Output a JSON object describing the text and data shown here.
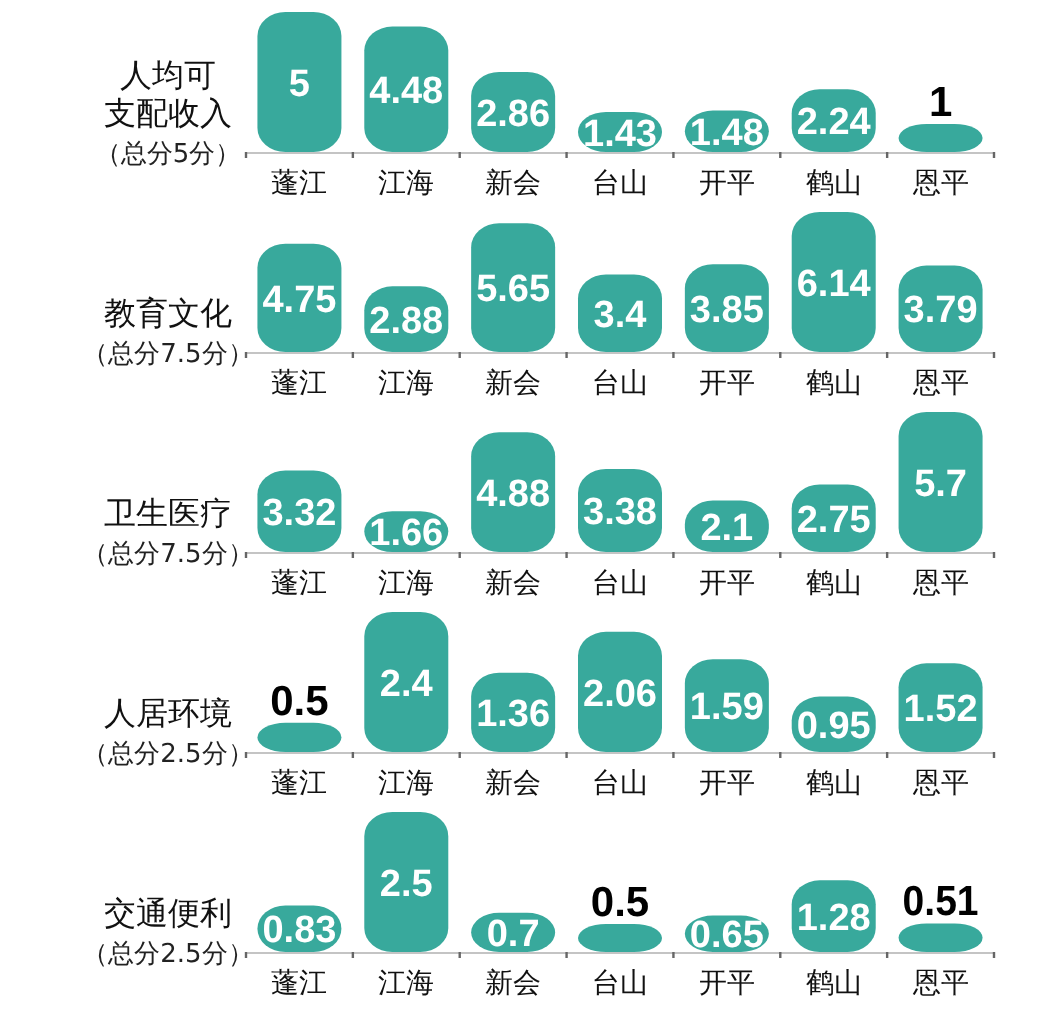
{
  "chart_data": [
    {
      "type": "bar",
      "title": "人均可支配收入",
      "subtitle": "（总分5分）",
      "categories": [
        "蓬江",
        "江海",
        "新会",
        "台山",
        "开平",
        "鹤山",
        "恩平"
      ],
      "values": [
        5,
        4.48,
        2.86,
        1.43,
        1.48,
        2.24,
        1
      ],
      "color": "#38a99c",
      "data_labels": true
    },
    {
      "type": "bar",
      "title": "教育文化",
      "subtitle": "（总分7.5分）",
      "categories": [
        "蓬江",
        "江海",
        "新会",
        "台山",
        "开平",
        "鹤山",
        "恩平"
      ],
      "values": [
        4.75,
        2.88,
        5.65,
        3.4,
        3.85,
        6.14,
        3.79
      ],
      "color": "#38a99c",
      "data_labels": true
    },
    {
      "type": "bar",
      "title": "卫生医疗",
      "subtitle": "（总分7.5分）",
      "categories": [
        "蓬江",
        "江海",
        "新会",
        "台山",
        "开平",
        "鹤山",
        "恩平"
      ],
      "values": [
        3.32,
        1.66,
        4.88,
        3.38,
        2.1,
        2.75,
        5.7
      ],
      "color": "#38a99c",
      "data_labels": true
    },
    {
      "type": "bar",
      "title": "人居环境",
      "subtitle": "（总分2.5分）",
      "categories": [
        "蓬江",
        "江海",
        "新会",
        "台山",
        "开平",
        "鹤山",
        "恩平"
      ],
      "values": [
        0.5,
        2.4,
        1.36,
        2.06,
        1.59,
        0.95,
        1.52
      ],
      "color": "#38a99c",
      "data_labels": true
    },
    {
      "type": "bar",
      "title": "交通便利",
      "subtitle": "（总分2.5分）",
      "categories": [
        "蓬江",
        "江海",
        "新会",
        "台山",
        "开平",
        "鹤山",
        "恩平"
      ],
      "values": [
        0.83,
        2.5,
        0.7,
        0.5,
        0.65,
        1.28,
        0.51
      ],
      "color": "#38a99c",
      "data_labels": true
    }
  ]
}
